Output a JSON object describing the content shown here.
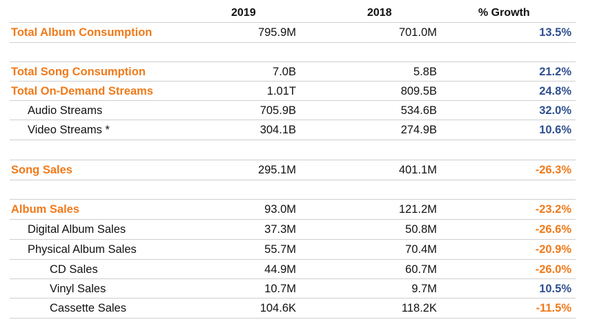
{
  "chart_data": {
    "type": "table",
    "columns": [
      "2019",
      "2018",
      "% Growth"
    ],
    "rows": [
      {
        "label": "Total Album Consumption",
        "level": 0,
        "v2019": "795.9M",
        "v2018": "701.0M",
        "growth": "13.5%",
        "dir": "pos"
      },
      {
        "label": "Total Song Consumption",
        "level": 0,
        "v2019": "7.0B",
        "v2018": "5.8B",
        "growth": "21.2%",
        "dir": "pos"
      },
      {
        "label": "Total On-Demand Streams",
        "level": 0,
        "v2019": "1.01T",
        "v2018": "809.5B",
        "growth": "24.8%",
        "dir": "pos"
      },
      {
        "label": "Audio Streams",
        "level": 1,
        "v2019": "705.9B",
        "v2018": "534.6B",
        "growth": "32.0%",
        "dir": "pos"
      },
      {
        "label": "Video Streams *",
        "level": 1,
        "v2019": "304.1B",
        "v2018": "274.9B",
        "growth": "10.6%",
        "dir": "pos"
      },
      {
        "label": "Song Sales",
        "level": 0,
        "v2019": "295.1M",
        "v2018": "401.1M",
        "growth": "-26.3%",
        "dir": "neg"
      },
      {
        "label": "Album Sales",
        "level": 0,
        "v2019": "93.0M",
        "v2018": "121.2M",
        "growth": "-23.2%",
        "dir": "neg"
      },
      {
        "label": "Digital Album Sales",
        "level": 1,
        "v2019": "37.3M",
        "v2018": "50.8M",
        "growth": "-26.6%",
        "dir": "neg"
      },
      {
        "label": "Physical Album Sales",
        "level": 1,
        "v2019": "55.7M",
        "v2018": "70.4M",
        "growth": "-20.9%",
        "dir": "neg"
      },
      {
        "label": "CD Sales",
        "level": 2,
        "v2019": "44.9M",
        "v2018": "60.7M",
        "growth": "-26.0%",
        "dir": "neg"
      },
      {
        "label": "Vinyl Sales",
        "level": 2,
        "v2019": "10.7M",
        "v2018": "9.7M",
        "growth": "10.5%",
        "dir": "pos"
      },
      {
        "label": "Cassette Sales",
        "level": 2,
        "v2019": "104.6K",
        "v2018": "118.2K",
        "growth": "-11.5%",
        "dir": "neg"
      }
    ]
  },
  "colors": {
    "category_label": "#f07a1a",
    "positive_growth": "#2f4f8f",
    "negative_growth": "#f07a1a",
    "rule": "#cfcfcf"
  }
}
